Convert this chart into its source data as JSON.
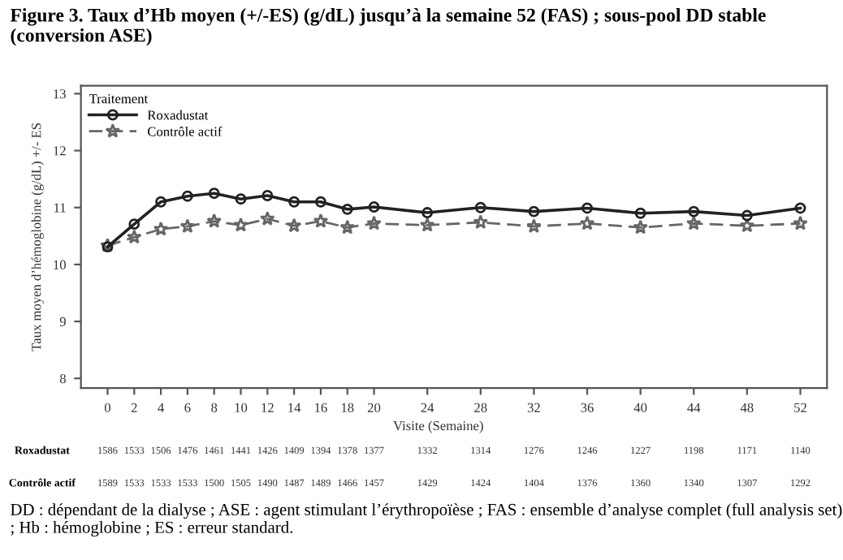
{
  "chart_data": {
    "type": "line",
    "title": "Figure 3. Taux d’Hb moyen (+/-ES) (g/dL) jusqu’à la semaine 52 (FAS) ; sous-pool DD stable (conversion ASE)",
    "xlabel": "Visite (Semaine)",
    "ylabel": "Taux moyen d’hémoglobine (g/dL) +/- ES",
    "legend_title": "Traitement",
    "legend": "top left",
    "x": [
      0,
      2,
      4,
      6,
      8,
      10,
      12,
      14,
      16,
      18,
      20,
      24,
      28,
      32,
      36,
      40,
      44,
      48,
      52
    ],
    "series": [
      {
        "name": "Roxadustat",
        "color": "#222222",
        "marker": "circle",
        "line_style": "solid",
        "values": [
          10.31,
          10.71,
          11.1,
          11.2,
          11.25,
          11.15,
          11.21,
          11.1,
          11.1,
          10.97,
          11.01,
          10.91,
          11.0,
          10.93,
          10.99,
          10.9,
          10.93,
          10.86,
          10.99
        ]
      },
      {
        "name": "Contrôle actif",
        "color": "#666666",
        "marker": "star",
        "line_style": "dashed",
        "values": [
          10.33,
          10.48,
          10.62,
          10.67,
          10.76,
          10.69,
          10.8,
          10.68,
          10.76,
          10.65,
          10.72,
          10.69,
          10.74,
          10.67,
          10.72,
          10.65,
          10.72,
          10.68,
          10.72
        ]
      }
    ],
    "xlim": [
      -2,
      54
    ],
    "xticks": [
      0,
      2,
      4,
      6,
      8,
      10,
      12,
      14,
      16,
      18,
      20,
      24,
      28,
      32,
      36,
      40,
      44,
      48,
      52
    ],
    "ylim": [
      7.83,
      13.14
    ],
    "yticks": [
      8,
      9,
      10,
      11,
      12,
      13
    ],
    "grid": false,
    "annotations": [
      "Roxadustat",
      "1586",
      "1533",
      "1506",
      "1476",
      "1461",
      "1441",
      "1426",
      "1409",
      "1394",
      "1378",
      "1377",
      "1332",
      "1314",
      "1276",
      "1246",
      "1227",
      "1198",
      "1171",
      "1140",
      "Contrôle actif",
      "1589",
      "1533",
      "1533",
      "1533",
      "1500",
      "1505",
      "1490",
      "1487",
      "1489",
      "1466",
      "1457",
      "1429",
      "1424",
      "1404",
      "1376",
      "1360",
      "1340",
      "1307",
      "1292",
      "DD : dépendant de la dialyse ; ASE : agent stimulant l’érythropoïèse ; FAS : ensemble d’analyse complet (full analysis set) ; Hb : hémoglobine ; ES : erreur standard."
    ]
  }
}
